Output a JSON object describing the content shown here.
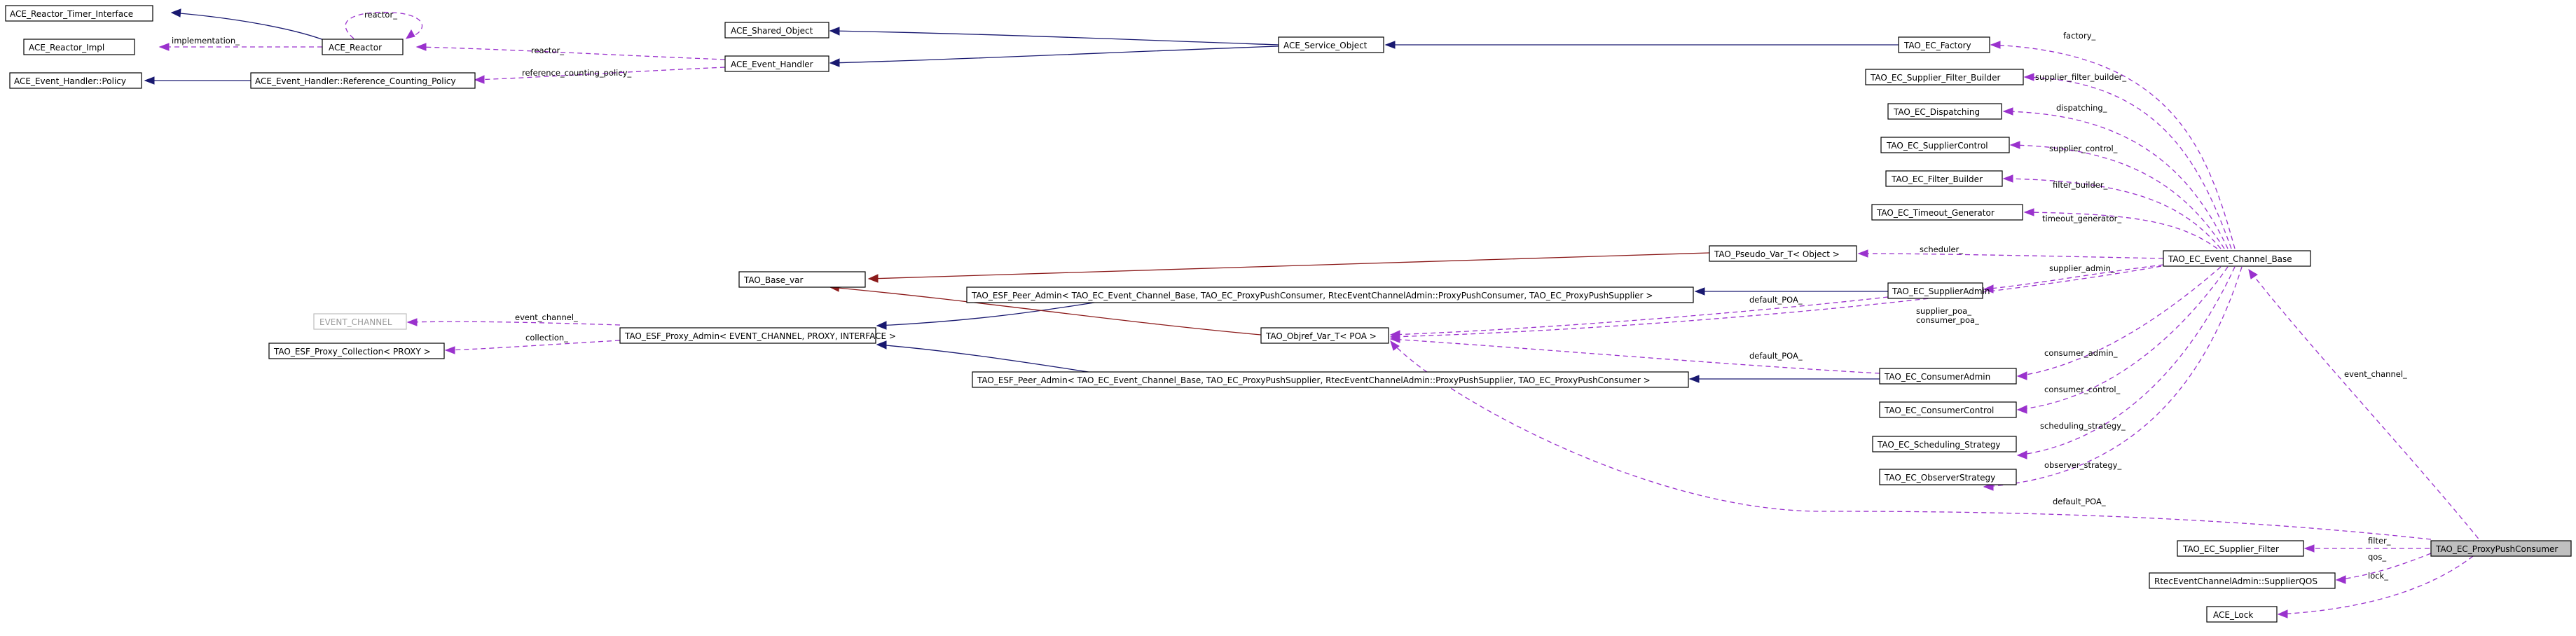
{
  "nodes": {
    "ace_reactor_timer_interface": "ACE_Reactor_Timer_Interface",
    "ace_reactor_impl": "ACE_Reactor_Impl",
    "ace_event_handler_policy": "ACE_Event_Handler::Policy",
    "ace_reactor": "ACE_Reactor",
    "ace_eh_refcount_policy": "ACE_Event_Handler::Reference_Counting_Policy",
    "ace_shared_object": "ACE_Shared_Object",
    "ace_event_handler": "ACE_Event_Handler",
    "ace_service_object": "ACE_Service_Object",
    "tao_ec_factory": "TAO_EC_Factory",
    "tao_ec_supplier_filter_builder": "TAO_EC_Supplier_Filter_Builder",
    "tao_ec_dispatching": "TAO_EC_Dispatching",
    "tao_ec_supplier_control": "TAO_EC_SupplierControl",
    "tao_ec_filter_builder": "TAO_EC_Filter_Builder",
    "tao_ec_timeout_generator": "TAO_EC_Timeout_Generator",
    "tao_pseudo_var": "TAO_Pseudo_Var_T< Object >",
    "tao_ec_event_channel_base": "TAO_EC_Event_Channel_Base",
    "tao_base_var": "TAO_Base_var",
    "tao_esf_peer_admin_consumer": "TAO_ESF_Peer_Admin< TAO_EC_Event_Channel_Base, TAO_EC_ProxyPushConsumer, RtecEventChannelAdmin::ProxyPushConsumer, TAO_EC_ProxyPushSupplier >",
    "tao_ec_supplier_admin": "TAO_EC_SupplierAdmin",
    "event_channel": "EVENT_CHANNEL",
    "tao_esf_proxy_admin": "TAO_ESF_Proxy_Admin< EVENT_CHANNEL, PROXY, INTERFACE >",
    "tao_objref_var": "TAO_Objref_Var_T< POA >",
    "tao_esf_proxy_collection": "TAO_ESF_Proxy_Collection< PROXY >",
    "tao_esf_peer_admin_supplier": "TAO_ESF_Peer_Admin< TAO_EC_Event_Channel_Base, TAO_EC_ProxyPushSupplier, RtecEventChannelAdmin::ProxyPushSupplier, TAO_EC_ProxyPushConsumer >",
    "tao_ec_consumer_admin": "TAO_EC_ConsumerAdmin",
    "tao_ec_consumer_control": "TAO_EC_ConsumerControl",
    "tao_ec_scheduling_strategy": "TAO_EC_Scheduling_Strategy",
    "tao_ec_observer_strategy": "TAO_EC_ObserverStrategy",
    "tao_ec_supplier_filter": "TAO_EC_Supplier_Filter",
    "tao_ec_proxy_push_consumer": "TAO_EC_ProxyPushConsumer",
    "rtec_supplier_qos": "RtecEventChannelAdmin::SupplierQOS",
    "ace_lock": "ACE_Lock"
  },
  "edge_labels": {
    "reactor_self": "reactor_",
    "implementation": "implementation_",
    "reactor": "reactor_",
    "reference_counting_policy": "reference_counting_policy_",
    "factory": "factory_",
    "supplier_filter_builder": "supplier_filter_builder_",
    "dispatching": "dispatching_",
    "supplier_control": "supplier_control_",
    "filter_builder": "filter_builder_",
    "timeout_generator": "timeout_generator_",
    "scheduler": "scheduler_",
    "supplier_admin": "supplier_admin_",
    "event_channel_proxy": "event_channel_",
    "collection": "collection_",
    "default_poa_supplier": "default_POA_",
    "supplier_poa": "supplier_poa_",
    "consumer_poa": "consumer_poa_",
    "default_poa_consumer": "default_POA_",
    "consumer_admin": "consumer_admin_",
    "consumer_control": "consumer_control_",
    "scheduling_strategy": "scheduling_strategy_",
    "observer_strategy": "observer_strategy_",
    "event_channel_main": "event_channel_",
    "default_poa_main": "default_POA_",
    "filter": "filter_",
    "qos": "qos_",
    "lock": "lock_"
  }
}
